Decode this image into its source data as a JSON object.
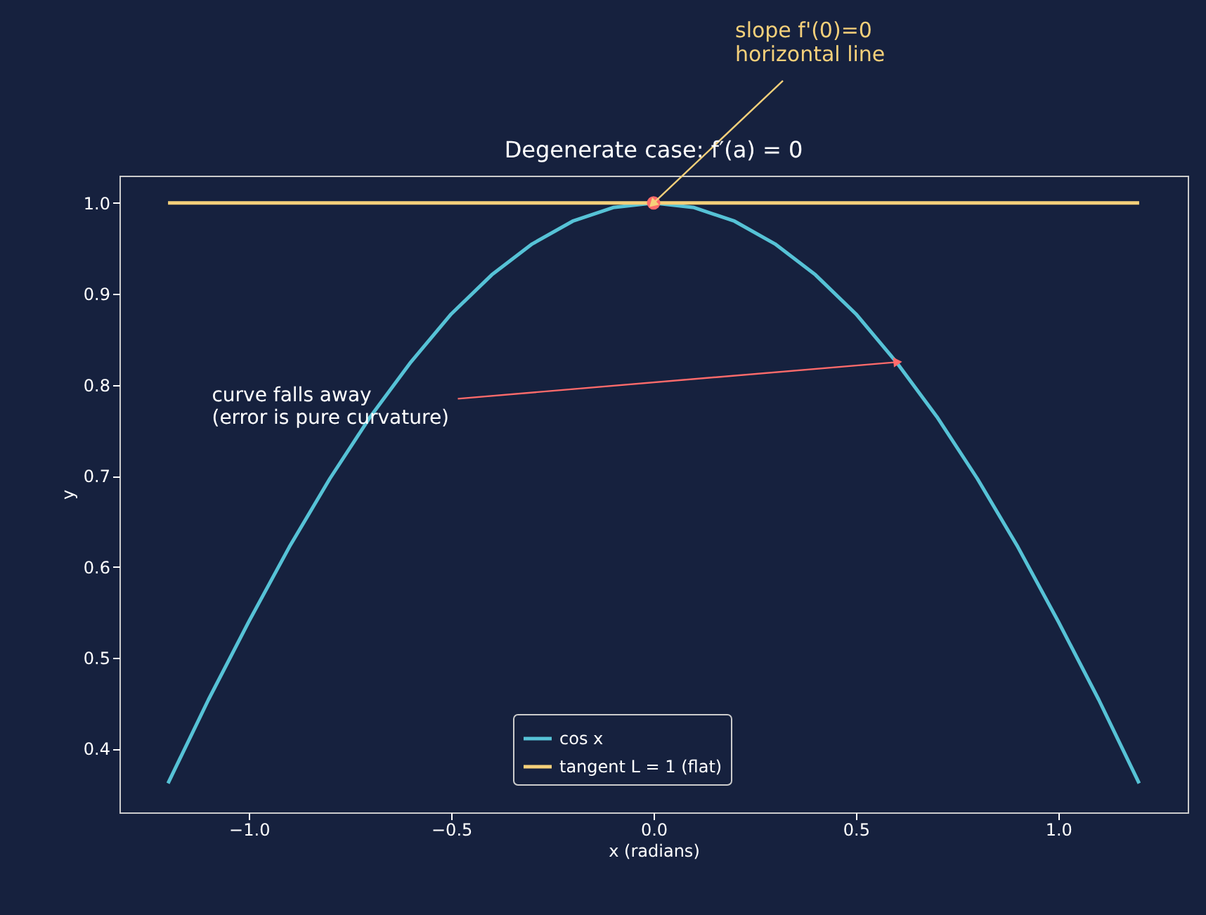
{
  "chart_data": {
    "type": "line",
    "title": "Degenerate case: f′(a) = 0",
    "xlabel": "x (radians)",
    "ylabel": "y",
    "series": [
      {
        "name": "cos x",
        "color": "#56c2d6",
        "x": [
          -1.2,
          -1.1,
          -1.0,
          -0.9,
          -0.8,
          -0.7,
          -0.6,
          -0.5,
          -0.4,
          -0.3,
          -0.2,
          -0.1,
          0.0,
          0.1,
          0.2,
          0.3,
          0.4,
          0.5,
          0.6,
          0.7,
          0.8,
          0.9,
          1.0,
          1.1,
          1.2
        ],
        "values": [
          0.362,
          0.454,
          0.54,
          0.622,
          0.697,
          0.765,
          0.825,
          0.878,
          0.921,
          0.955,
          0.98,
          0.995,
          1.0,
          0.995,
          0.98,
          0.955,
          0.921,
          0.878,
          0.825,
          0.765,
          0.697,
          0.622,
          0.54,
          0.454,
          0.362
        ]
      },
      {
        "name": "tangent L = 1 (flat)",
        "color": "#f5d07a",
        "x": [
          -1.2,
          1.2
        ],
        "values": [
          1.0,
          1.0
        ]
      },
      {
        "type": "scatter",
        "marker": "circle",
        "color": "#ff6b6b",
        "x": [
          0.0
        ],
        "values": [
          1.0
        ]
      }
    ],
    "annotations": [
      {
        "text": "slope f'(0)=0\nhorizontal line",
        "x": 0.0,
        "y": 1.0
      },
      {
        "text": "curve falls away\n(error is pure curvature)",
        "x": 0.6,
        "y": 0.825
      }
    ],
    "xlim": [
      -1.32,
      1.32
    ],
    "ylim": [
      0.33,
      1.03
    ],
    "xticks": [
      {
        "value": -1.0,
        "label": "−1.0"
      },
      {
        "value": -0.5,
        "label": "−0.5"
      },
      {
        "value": 0.0,
        "label": "0.0"
      },
      0.5,
      {
        "value": 1.0,
        "label": "1.0"
      }
    ],
    "yticks": [
      0.4,
      0.5,
      0.6,
      0.7,
      0.8,
      0.9,
      {
        "value": 1.0,
        "label": "1.0"
      }
    ],
    "grid": false,
    "legend": "bottom",
    "marker": "none",
    "line_style": "solid"
  }
}
